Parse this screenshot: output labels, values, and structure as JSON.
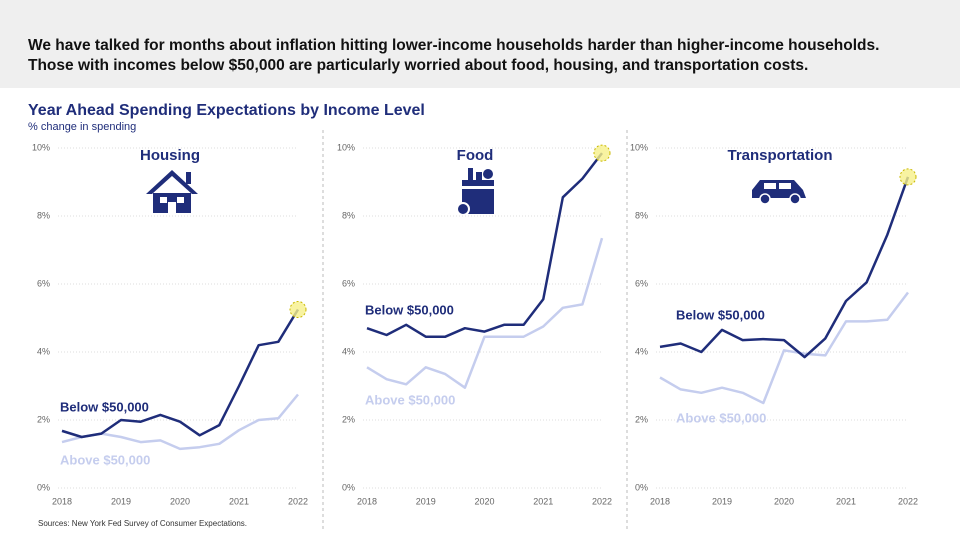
{
  "headline": [
    "We have talked for months about inflation hitting lower-income households harder than higher-income households.",
    "Those with incomes below $50,000 are particularly worried about food, housing, and transportation costs."
  ],
  "title": "Year Ahead Spending Expectations by Income Level",
  "subtitle": "% change in spending",
  "source": "Sources: New York Fed Survey of Consumer Expectations.",
  "chart_data": [
    {
      "type": "line",
      "title": "Housing",
      "categories": [
        "2018",
        null,
        null,
        "2019",
        null,
        null,
        "2020",
        null,
        null,
        "2021",
        null,
        null,
        "2022"
      ],
      "ylim": [
        0,
        10
      ],
      "yticks": [
        {
          "value": 0,
          "label": "0%"
        },
        {
          "value": 2,
          "label": "2%"
        },
        {
          "value": 4,
          "label": "4%"
        },
        {
          "value": 6,
          "label": "6%"
        },
        {
          "value": 8,
          "label": "8%"
        },
        {
          "value": 10,
          "label": "10%"
        }
      ],
      "grid": true,
      "series": [
        {
          "name": "Below $50,000",
          "color": "#1f2d7a",
          "values": [
            1.68,
            1.5,
            1.6,
            2.0,
            1.95,
            2.15,
            1.95,
            1.55,
            1.85,
            3.0,
            4.2,
            4.3,
            5.25
          ]
        },
        {
          "name": "Above $50,000",
          "color": "#c5cdee",
          "values": [
            1.35,
            1.5,
            1.6,
            1.5,
            1.35,
            1.4,
            1.15,
            1.2,
            1.3,
            1.7,
            2.0,
            2.05,
            2.75
          ]
        }
      ]
    },
    {
      "type": "line",
      "title": "Food",
      "categories": [
        "2018",
        null,
        null,
        "2019",
        null,
        null,
        "2020",
        null,
        null,
        "2021",
        null,
        null,
        "2022"
      ],
      "ylim": [
        0,
        10
      ],
      "yticks": [
        {
          "value": 0,
          "label": "0%"
        },
        {
          "value": 2,
          "label": "2%"
        },
        {
          "value": 4,
          "label": "4%"
        },
        {
          "value": 6,
          "label": "6%"
        },
        {
          "value": 8,
          "label": "8%"
        },
        {
          "value": 10,
          "label": "10%"
        }
      ],
      "grid": true,
      "series": [
        {
          "name": "Below $50,000",
          "color": "#1f2d7a",
          "values": [
            4.7,
            4.5,
            4.8,
            4.45,
            4.45,
            4.7,
            4.6,
            4.8,
            4.8,
            5.55,
            8.55,
            9.1,
            9.85
          ]
        },
        {
          "name": "Above $50,000",
          "color": "#c5cdee",
          "values": [
            3.55,
            3.2,
            3.05,
            3.55,
            3.35,
            2.95,
            4.45,
            4.45,
            4.45,
            4.75,
            5.3,
            5.4,
            7.35
          ]
        }
      ]
    },
    {
      "type": "line",
      "title": "Transportation",
      "categories": [
        "2018",
        null,
        null,
        "2019",
        null,
        null,
        "2020",
        null,
        null,
        "2021",
        null,
        null,
        "2022"
      ],
      "ylim": [
        0,
        10
      ],
      "yticks": [
        {
          "value": 0,
          "label": "0%"
        },
        {
          "value": 2,
          "label": "2%"
        },
        {
          "value": 4,
          "label": "4%"
        },
        {
          "value": 6,
          "label": "6%"
        },
        {
          "value": 8,
          "label": "8%"
        },
        {
          "value": 10,
          "label": "10%"
        }
      ],
      "grid": true,
      "series": [
        {
          "name": "Below $50,000",
          "color": "#1f2d7a",
          "values": [
            4.15,
            4.25,
            4.0,
            4.65,
            4.35,
            4.38,
            4.35,
            3.85,
            4.4,
            5.5,
            6.05,
            7.45,
            9.15
          ]
        },
        {
          "name": "Above $50,000",
          "color": "#c5cdee",
          "values": [
            3.25,
            2.9,
            2.8,
            2.95,
            2.8,
            2.5,
            4.05,
            3.95,
            3.9,
            4.9,
            4.9,
            4.95,
            5.75
          ]
        }
      ]
    }
  ]
}
